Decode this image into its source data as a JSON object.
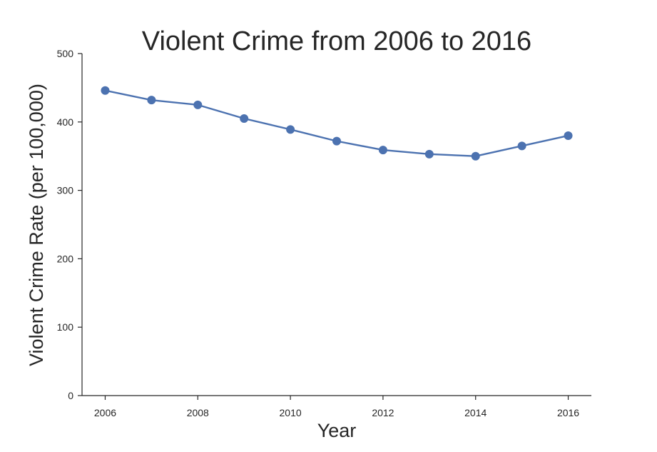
{
  "colors": {
    "series": "#4c72b0",
    "axis": "#262626",
    "background": "#ffffff"
  },
  "chart_data": {
    "type": "line",
    "title": "Violent Crime from 2006 to 2016",
    "xlabel": "Year",
    "ylabel": "Violent Crime Rate (per 100,000)",
    "x": [
      2006,
      2007,
      2008,
      2009,
      2010,
      2011,
      2012,
      2013,
      2014,
      2015,
      2016
    ],
    "y": [
      446,
      432,
      425,
      405,
      389,
      372,
      359,
      353,
      350,
      365,
      380
    ],
    "xlim": [
      2005.5,
      2016.5
    ],
    "ylim": [
      0,
      500
    ],
    "xticks": [
      2006,
      2008,
      2010,
      2012,
      2014,
      2016
    ],
    "yticks": [
      0,
      100,
      200,
      300,
      400,
      500
    ],
    "grid": false,
    "marker": "circle"
  }
}
